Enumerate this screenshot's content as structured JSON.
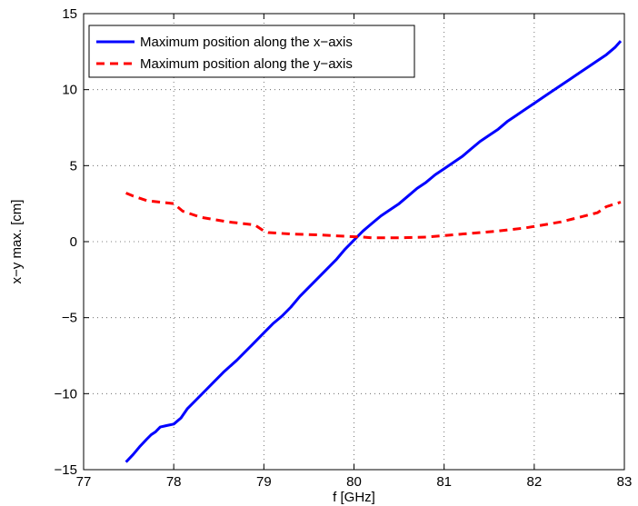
{
  "chart_data": {
    "type": "line",
    "xlabel": "f [GHz]",
    "ylabel": "x−y max. [cm]",
    "xlim": [
      77,
      83
    ],
    "ylim": [
      -15,
      15
    ],
    "xticks": [
      77,
      78,
      79,
      80,
      81,
      82,
      83
    ],
    "yticks": [
      -15,
      -10,
      -5,
      0,
      5,
      10,
      15
    ],
    "xtick_labels": [
      "77",
      "78",
      "79",
      "80",
      "81",
      "82",
      "83"
    ],
    "ytick_labels": [
      "−15",
      "−10",
      "−5",
      "0",
      "5",
      "10",
      "15"
    ],
    "grid": true,
    "legend_position": "top-left",
    "series": [
      {
        "name": "Maximum position along the x−axis",
        "color": "#0000ff",
        "style": "solid",
        "x": [
          77.47,
          77.55,
          77.62,
          77.7,
          77.75,
          77.8,
          77.85,
          77.92,
          78.0,
          78.08,
          78.15,
          78.25,
          78.35,
          78.45,
          78.55,
          78.7,
          78.85,
          79.0,
          79.1,
          79.2,
          79.3,
          79.4,
          79.5,
          79.6,
          79.7,
          79.8,
          79.9,
          80.0,
          80.1,
          80.2,
          80.3,
          80.4,
          80.5,
          80.6,
          80.7,
          80.8,
          80.9,
          81.0,
          81.1,
          81.2,
          81.3,
          81.4,
          81.5,
          81.6,
          81.7,
          81.8,
          81.9,
          82.0,
          82.1,
          82.2,
          82.3,
          82.4,
          82.5,
          82.6,
          82.7,
          82.8,
          82.9,
          82.96
        ],
        "y": [
          -14.5,
          -14.0,
          -13.5,
          -13.0,
          -12.7,
          -12.5,
          -12.2,
          -12.1,
          -12.0,
          -11.6,
          -11.0,
          -10.4,
          -9.8,
          -9.2,
          -8.6,
          -7.8,
          -6.9,
          -6.0,
          -5.4,
          -4.9,
          -4.3,
          -3.6,
          -3.0,
          -2.4,
          -1.8,
          -1.2,
          -0.5,
          0.1,
          0.7,
          1.2,
          1.7,
          2.1,
          2.5,
          3.0,
          3.5,
          3.9,
          4.4,
          4.8,
          5.2,
          5.6,
          6.1,
          6.6,
          7.0,
          7.4,
          7.9,
          8.3,
          8.7,
          9.1,
          9.5,
          9.9,
          10.3,
          10.7,
          11.1,
          11.5,
          11.9,
          12.3,
          12.8,
          13.2
        ]
      },
      {
        "name": "Maximum position along the y−axis",
        "color": "#ff0000",
        "style": "dashed",
        "x": [
          77.47,
          77.55,
          77.7,
          77.85,
          78.0,
          78.1,
          78.3,
          78.6,
          78.9,
          79.0,
          79.05,
          79.3,
          79.6,
          79.9,
          80.1,
          80.2,
          80.5,
          80.8,
          81.0,
          81.3,
          81.6,
          81.9,
          82.1,
          82.3,
          82.5,
          82.7,
          82.8,
          82.96
        ],
        "y": [
          3.2,
          3.0,
          2.7,
          2.6,
          2.5,
          2.0,
          1.6,
          1.3,
          1.1,
          0.7,
          0.6,
          0.5,
          0.45,
          0.35,
          0.3,
          0.25,
          0.25,
          0.3,
          0.4,
          0.55,
          0.7,
          0.9,
          1.1,
          1.3,
          1.6,
          1.9,
          2.3,
          2.6
        ]
      }
    ]
  }
}
